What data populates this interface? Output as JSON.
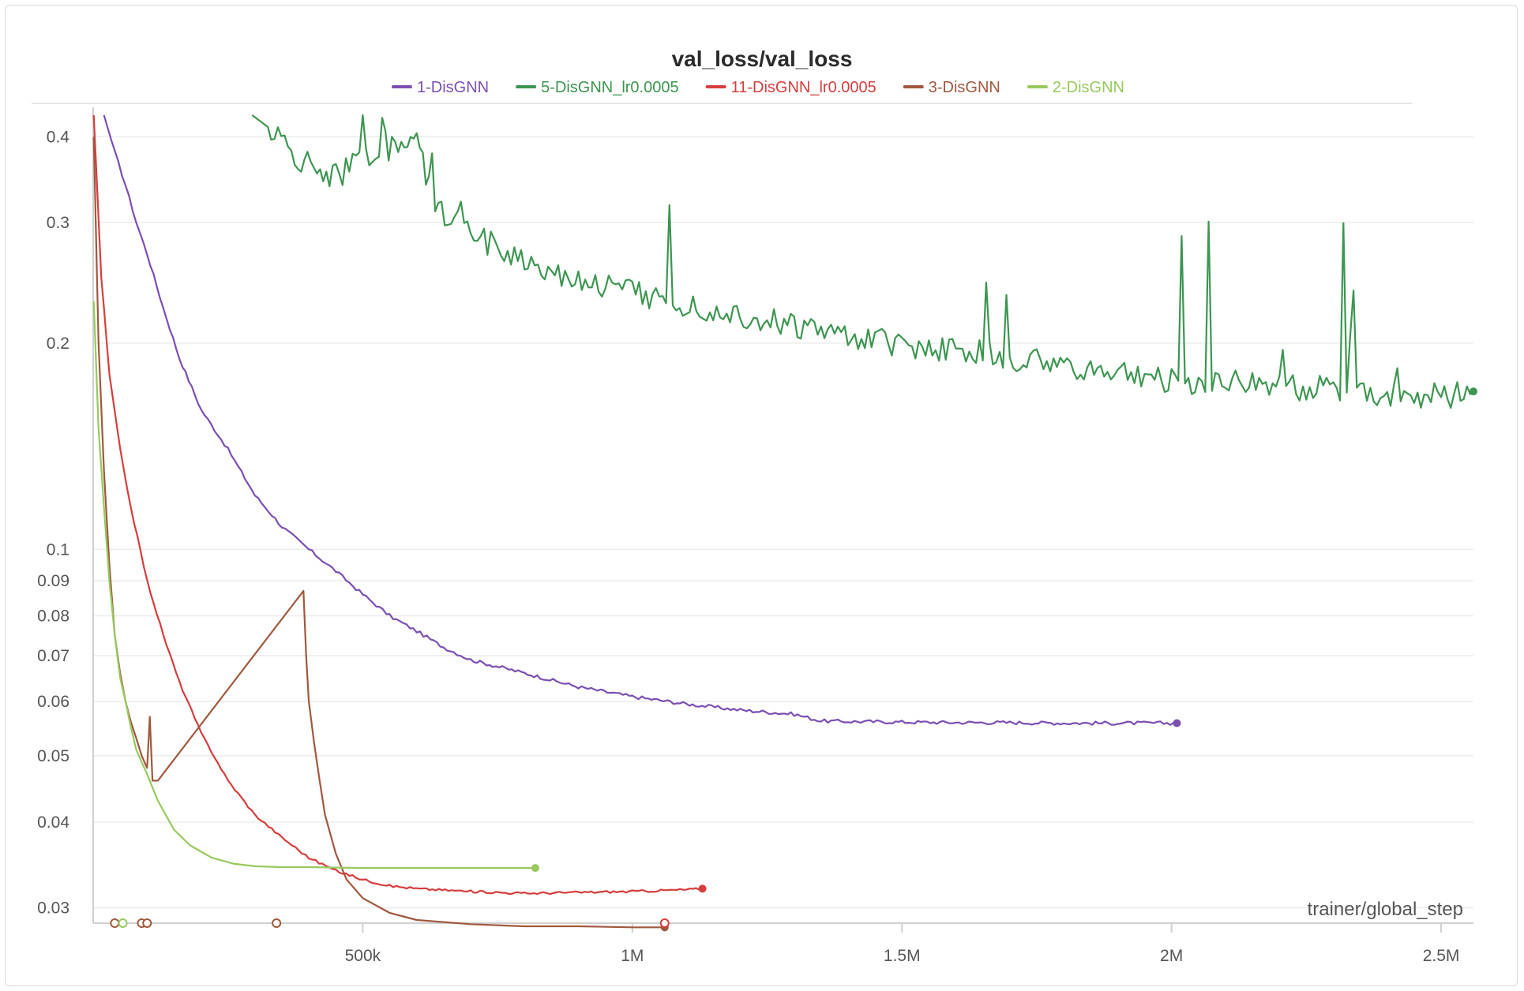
{
  "chart_data": {
    "type": "line",
    "title": "val_loss/val_loss",
    "xlabel": "trainer/global_step",
    "ylabel": "",
    "yscale": "log",
    "xlim": [
      0,
      2560000
    ],
    "ylim": [
      0.0285,
      0.43
    ],
    "grid": true,
    "legend_position": "top-center",
    "x_ticks": [
      {
        "value": 500000,
        "label": "500k"
      },
      {
        "value": 1000000,
        "label": "1M"
      },
      {
        "value": 1500000,
        "label": "1.5M"
      },
      {
        "value": 2000000,
        "label": "2M"
      },
      {
        "value": 2500000,
        "label": "2.5M"
      }
    ],
    "y_ticks": [
      {
        "value": 0.4,
        "label": "0.4"
      },
      {
        "value": 0.3,
        "label": "0.3"
      },
      {
        "value": 0.2,
        "label": "0.2"
      },
      {
        "value": 0.1,
        "label": "0.1"
      },
      {
        "value": 0.09,
        "label": "0.09"
      },
      {
        "value": 0.08,
        "label": "0.08"
      },
      {
        "value": 0.07,
        "label": "0.07"
      },
      {
        "value": 0.06,
        "label": "0.06"
      },
      {
        "value": 0.05,
        "label": "0.05"
      },
      {
        "value": 0.04,
        "label": "0.04"
      },
      {
        "value": 0.03,
        "label": "0.03"
      }
    ],
    "series": [
      {
        "name": "1-DisGNN",
        "color": "#7b4fb3",
        "x": [
          20000,
          40000,
          60000,
          80000,
          100000,
          130000,
          160000,
          200000,
          250000,
          300000,
          350000,
          400000,
          450000,
          500000,
          550000,
          600000,
          650000,
          700000,
          800000,
          900000,
          1000000,
          1100000,
          1200000,
          1300000,
          1350000,
          1400000,
          1500000,
          1600000,
          1700000,
          1800000,
          1900000,
          2010000
        ],
        "y": [
          0.43,
          0.38,
          0.34,
          0.3,
          0.27,
          0.225,
          0.19,
          0.16,
          0.14,
          0.12,
          0.108,
          0.1,
          0.093,
          0.086,
          0.08,
          0.076,
          0.072,
          0.069,
          0.066,
          0.063,
          0.061,
          0.0595,
          0.0583,
          0.0575,
          0.0562,
          0.0561,
          0.056,
          0.0559,
          0.0559,
          0.0558,
          0.0558,
          0.0558
        ]
      },
      {
        "name": "5-DisGNN_lr0.0005",
        "color": "#3c9550",
        "x": [
          295000,
          330000,
          380000,
          450000,
          500000,
          560000,
          600000,
          640000,
          700000,
          750000,
          800000,
          850000,
          900000,
          950000,
          1000000,
          1050000,
          1100000,
          1150000,
          1200000,
          1250000,
          1300000,
          1350000,
          1400000,
          1450000,
          1500000,
          1550000,
          1600000,
          1650000,
          1700000,
          1750000,
          1800000,
          1850000,
          1900000,
          1950000,
          2000000,
          2050000,
          2100000,
          2150000,
          2200000,
          2250000,
          2300000,
          2350000,
          2400000,
          2450000,
          2500000,
          2560000
        ],
        "y": [
          0.43,
          0.41,
          0.37,
          0.35,
          0.37,
          0.39,
          0.39,
          0.31,
          0.29,
          0.275,
          0.265,
          0.255,
          0.248,
          0.243,
          0.238,
          0.233,
          0.228,
          0.224,
          0.22,
          0.216,
          0.212,
          0.208,
          0.205,
          0.202,
          0.199,
          0.197,
          0.195,
          0.193,
          0.191,
          0.188,
          0.185,
          0.183,
          0.181,
          0.179,
          0.177,
          0.176,
          0.175,
          0.174,
          0.173,
          0.172,
          0.171,
          0.17,
          0.169,
          0.168,
          0.167,
          0.17
        ]
      },
      {
        "name": "11-DisGNN_lr0.0005",
        "color": "#d63d3d",
        "x": [
          1000,
          15000,
          30000,
          50000,
          70000,
          100000,
          130000,
          160000,
          200000,
          250000,
          300000,
          350000,
          400000,
          450000,
          500000,
          550000,
          600000,
          700000,
          800000,
          900000,
          1000000,
          1100000,
          1130000
        ],
        "y": [
          0.43,
          0.25,
          0.18,
          0.14,
          0.115,
          0.09,
          0.075,
          0.064,
          0.054,
          0.046,
          0.041,
          0.038,
          0.0355,
          0.034,
          0.033,
          0.0323,
          0.032,
          0.0317,
          0.0315,
          0.0316,
          0.0317,
          0.0319,
          0.032
        ]
      },
      {
        "name": "3-DisGNN",
        "color": "#a0583e",
        "x": [
          1000,
          10000,
          20000,
          30000,
          40000,
          50000,
          60000,
          70000,
          80000,
          90000,
          100000,
          105000,
          110000,
          120000,
          390000,
          395000,
          400000,
          410000,
          420000,
          430000,
          450000,
          470000,
          500000,
          550000,
          600000,
          700000,
          800000,
          900000,
          1000000,
          1060000
        ],
        "y": [
          0.4,
          0.2,
          0.13,
          0.095,
          0.075,
          0.066,
          0.06,
          0.056,
          0.053,
          0.05,
          0.048,
          0.057,
          0.046,
          0.046,
          0.087,
          0.07,
          0.06,
          0.052,
          0.046,
          0.041,
          0.036,
          0.033,
          0.031,
          0.0295,
          0.0288,
          0.0284,
          0.0282,
          0.0282,
          0.0281,
          0.0281
        ]
      },
      {
        "name": "2-DisGNN",
        "color": "#97c95e",
        "x": [
          1000,
          10000,
          20000,
          30000,
          40000,
          50000,
          60000,
          70000,
          80000,
          100000,
          120000,
          150000,
          180000,
          220000,
          260000,
          300000,
          350000,
          400000,
          500000,
          600000,
          700000,
          820000
        ],
        "y": [
          0.23,
          0.15,
          0.115,
          0.09,
          0.075,
          0.065,
          0.06,
          0.055,
          0.051,
          0.047,
          0.043,
          0.039,
          0.037,
          0.0355,
          0.0348,
          0.0345,
          0.0344,
          0.0344,
          0.0343,
          0.0343,
          0.0343,
          0.0343
        ]
      }
    ],
    "run_markers": [
      {
        "x": 40000,
        "color": "#a0583e"
      },
      {
        "x": 55000,
        "color": "#97c95e"
      },
      {
        "x": 90000,
        "color": "#a0583e"
      },
      {
        "x": 100000,
        "color": "#a0583e"
      },
      {
        "x": 340000,
        "color": "#a0583e"
      },
      {
        "x": 1060000,
        "color": "#d63d3d"
      }
    ]
  }
}
